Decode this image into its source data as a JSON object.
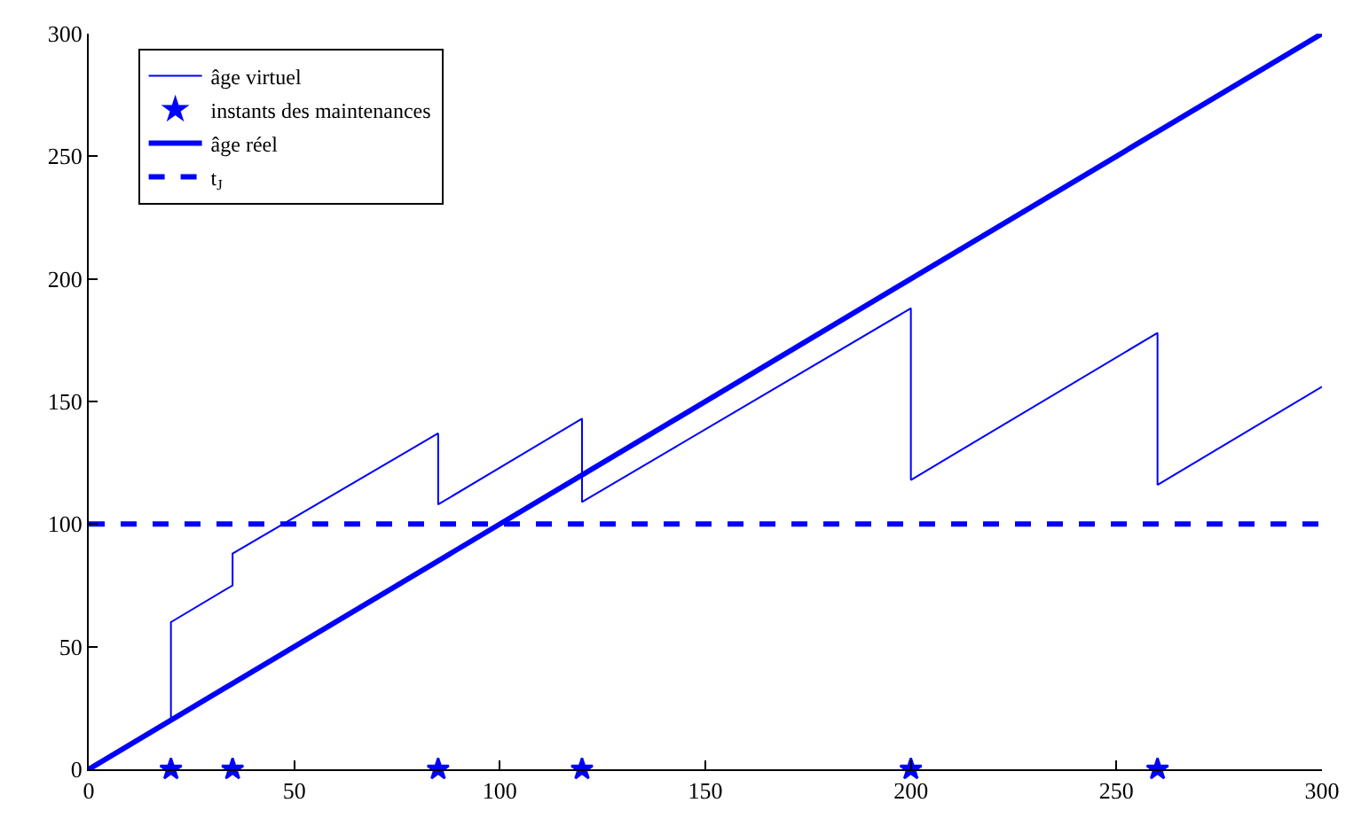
{
  "chart_data": {
    "type": "line",
    "xlim": [
      0,
      300
    ],
    "ylim": [
      0,
      300
    ],
    "xticks": [
      0,
      50,
      100,
      150,
      200,
      250,
      300
    ],
    "yticks": [
      0,
      50,
      100,
      150,
      200,
      250,
      300
    ],
    "legend": "top left",
    "series": [
      {
        "name": "âge virtuel",
        "color": "#0000ff",
        "line_style": "solid",
        "x": [
          0,
          20,
          20,
          35,
          35,
          85,
          85,
          120,
          120,
          200,
          200,
          260,
          260,
          300
        ],
        "values": [
          0,
          20,
          60,
          75,
          88,
          137,
          108,
          143,
          109,
          188,
          118,
          178,
          116,
          156
        ]
      },
      {
        "name": "instants des maintenances",
        "color": "#0000ff",
        "type": "scatter",
        "marker": "star",
        "x": [
          20,
          35,
          85,
          120,
          200,
          260
        ],
        "values": [
          0,
          0,
          0,
          0,
          0,
          0
        ]
      },
      {
        "name": "âge réel",
        "color": "#0000ff",
        "line_style": "solid",
        "x": [
          0,
          300
        ],
        "values": [
          0,
          300
        ]
      },
      {
        "name": "t$_{J}$",
        "color": "#0000ff",
        "line_style": "dashed",
        "x": [
          0,
          300
        ],
        "values": [
          100,
          100
        ]
      }
    ]
  }
}
